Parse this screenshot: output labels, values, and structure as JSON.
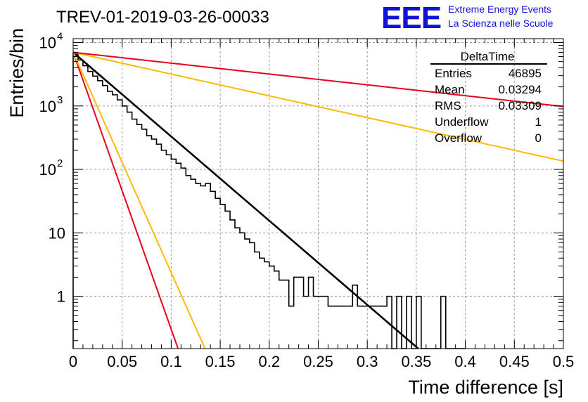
{
  "title": "TREV-01-2019-03-26-00033",
  "logo": {
    "letters": "EEE",
    "line1": "Extreme Energy Events",
    "line2": "La Scienza nelle Scuole",
    "color": "#1111dd"
  },
  "stats_box": {
    "header": "DeltaTime",
    "rows": [
      {
        "label": "Entries",
        "value": "46895"
      },
      {
        "label": "Mean",
        "value": "0.03294"
      },
      {
        "label": "RMS",
        "value": "0.03309"
      },
      {
        "label": "Underflow",
        "value": "1"
      },
      {
        "label": "Overflow",
        "value": "0"
      }
    ]
  },
  "chart_data": {
    "type": "line",
    "xlabel": "Time difference [s]",
    "ylabel": "Entries/bin",
    "xlim": [
      0,
      0.5
    ],
    "ylim": [
      0.15,
      11500
    ],
    "y_scale": "log",
    "grid": true,
    "x_ticks": [
      "0",
      "0.05",
      "0.1",
      "0.15",
      "0.2",
      "0.25",
      "0.3",
      "0.35",
      "0.4",
      "0.45",
      "0.5"
    ],
    "y_ticks": [
      {
        "value": 1,
        "label": "1"
      },
      {
        "value": 10,
        "label": "10"
      },
      {
        "value": 100,
        "label": "10",
        "exp": "2"
      },
      {
        "value": 1000,
        "label": "10",
        "exp": "3"
      },
      {
        "value": 10000,
        "label": "10",
        "exp": "4"
      }
    ],
    "histogram": {
      "name": "DeltaTime",
      "color": "#000000",
      "bin_width": 0.005,
      "x_start": 0,
      "counts": [
        6600,
        5300,
        4300,
        3500,
        2950,
        2500,
        2100,
        1700,
        1500,
        1250,
        1000,
        800,
        620,
        510,
        430,
        340,
        300,
        250,
        200,
        170,
        145,
        125,
        105,
        80,
        70,
        60,
        55,
        60,
        45,
        35,
        28,
        22,
        16,
        12,
        10,
        8,
        7,
        5,
        4,
        3.5,
        3,
        2.5,
        1.8,
        1.8,
        0.7,
        2,
        2,
        1,
        2,
        1,
        1,
        1,
        0.7,
        0.7,
        0.7,
        0.7,
        0.7,
        1.5,
        0.7,
        0.7,
        0.7,
        0.7,
        0.7,
        0.7,
        1,
        0.1,
        1,
        0.1,
        1,
        0.1,
        1,
        0.1,
        0.1,
        0.1,
        0.1,
        1,
        0.1,
        0.1,
        0.1,
        0.1
      ]
    },
    "fit_lines": [
      {
        "color": "#000000",
        "x": [
          0,
          0.352
        ],
        "y": [
          7000,
          0.15
        ]
      },
      {
        "color": "#e8001c",
        "x": [
          0,
          0.107
        ],
        "y": [
          7000,
          0.15
        ]
      },
      {
        "color": "#ffbb00",
        "x": [
          0,
          0.1345
        ],
        "y": [
          7000,
          0.15
        ]
      },
      {
        "color": "#ffbb00",
        "x": [
          0,
          0.5
        ],
        "y": [
          7000,
          135
        ]
      },
      {
        "color": "#e8001c",
        "x": [
          0,
          0.5
        ],
        "y": [
          7000,
          980
        ]
      }
    ]
  }
}
